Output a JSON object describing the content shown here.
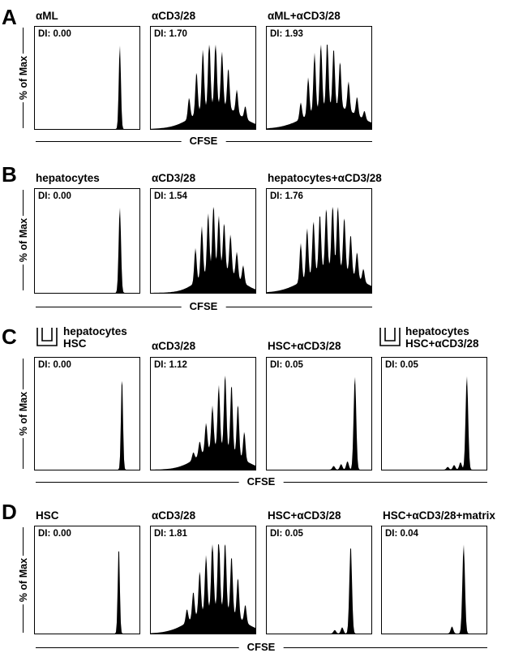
{
  "axis": {
    "x_label": "CFSE",
    "y_label": "% of Max"
  },
  "panels": [
    {
      "letter": "A",
      "plots": [
        {
          "title": "αML",
          "di": "DI: 0.00"
        },
        {
          "title": "αCD3/28",
          "di": "DI: 1.70"
        },
        {
          "title": "αML+αCD3/28",
          "di": "DI: 1.93"
        }
      ]
    },
    {
      "letter": "B",
      "plots": [
        {
          "title": "hepatocytes",
          "di": "DI: 0.00"
        },
        {
          "title": "αCD3/28",
          "di": "DI: 1.54"
        },
        {
          "title": "hepatocytes+αCD3/28",
          "di": "DI: 1.76"
        }
      ]
    },
    {
      "letter": "C",
      "plots": [
        {
          "title_line1": "hepatocytes",
          "title_line2": "HSC",
          "di": "DI: 0.00"
        },
        {
          "title": "αCD3/28",
          "di": "DI: 1.12"
        },
        {
          "title": "HSC+αCD3/28",
          "di": "DI: 0.05"
        },
        {
          "title_line1": "hepatocytes",
          "title_line2": "HSC+αCD3/28",
          "di": "DI: 0.05"
        }
      ]
    },
    {
      "letter": "D",
      "plots": [
        {
          "title": "HSC",
          "di": "DI: 0.00"
        },
        {
          "title": "αCD3/28",
          "di": "DI: 1.81"
        },
        {
          "title": "HSC+αCD3/28",
          "di": "DI: 0.05"
        },
        {
          "title": "HSC+αCD3/28+matrix",
          "di": "DI: 0.04"
        }
      ]
    }
  ]
}
